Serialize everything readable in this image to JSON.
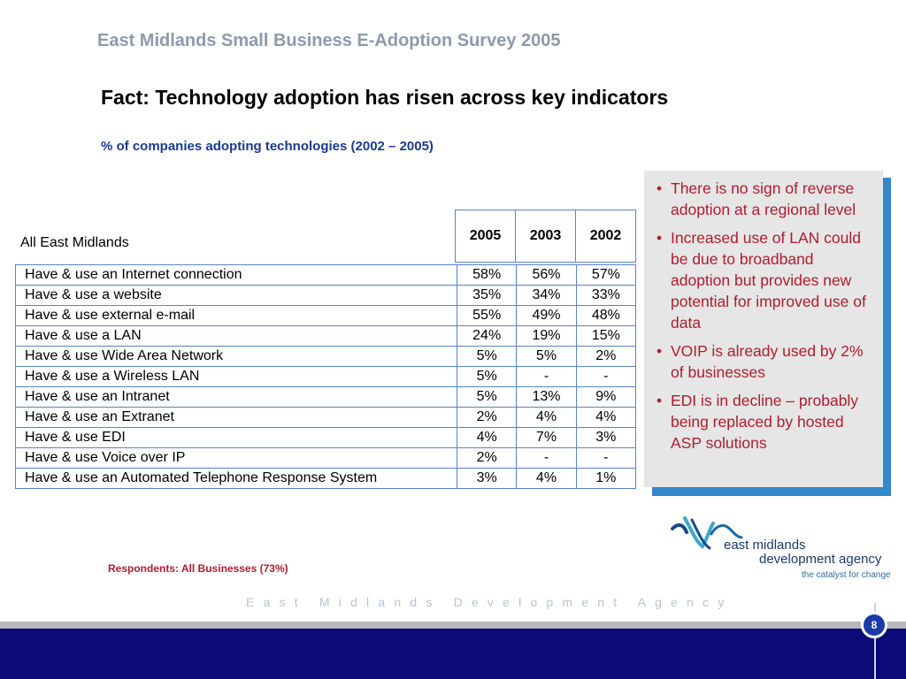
{
  "header_title": "East Midlands Small Business E-Adoption Survey 2005",
  "slide_title": "Fact: Technology adoption has risen across key indicators",
  "subtitle": "% of companies adopting technologies (2002 – 2005)",
  "table": {
    "region_label": "All East Midlands",
    "years": [
      "2005",
      "2003",
      "2002"
    ],
    "rows": [
      {
        "label": "Have & use an Internet connection",
        "values": [
          "58%",
          "56%",
          "57%"
        ]
      },
      {
        "label": "Have & use a website",
        "values": [
          "35%",
          "34%",
          "33%"
        ]
      },
      {
        "label": "Have & use external e-mail",
        "values": [
          "55%",
          "49%",
          "48%"
        ]
      },
      {
        "label": "Have & use a LAN",
        "values": [
          "24%",
          "19%",
          "15%"
        ]
      },
      {
        "label": "Have & use Wide Area Network",
        "values": [
          "5%",
          "5%",
          "2%"
        ]
      },
      {
        "label": "Have & use a Wireless LAN",
        "values": [
          "5%",
          "-",
          "-"
        ]
      },
      {
        "label": "Have & use an Intranet",
        "values": [
          "5%",
          "13%",
          "9%"
        ]
      },
      {
        "label": "Have & use an Extranet",
        "values": [
          "2%",
          "4%",
          "4%"
        ]
      },
      {
        "label": "Have & use EDI",
        "values": [
          "4%",
          "7%",
          "3%"
        ]
      },
      {
        "label": "Have & use Voice over IP",
        "values": [
          "2%",
          "-",
          "-"
        ]
      },
      {
        "label": "Have & use an Automated Telephone Response System",
        "values": [
          "3%",
          "4%",
          "1%"
        ]
      }
    ]
  },
  "notes": [
    "There is no sign of reverse adoption at a regional level",
    "Increased use of LAN could be due to broadband adoption but provides new potential for improved use of data",
    "VOIP is already used by 2% of businesses",
    "EDI is in decline – probably being replaced by hosted ASP solutions"
  ],
  "logo": {
    "line1": "east midlands",
    "line2": "development agency",
    "tagline": "the catalyst for change"
  },
  "respondents": "Respondents: All Businesses (73%)",
  "footer_agency": "East Midlands Development Agency",
  "page_number": "8",
  "colors": {
    "header_grey": "#8c9aad",
    "subtitle_blue": "#1a3a8c",
    "note_red": "#b01c2e",
    "table_border": "#5a82c8",
    "footer_navy": "#0a0a78"
  }
}
